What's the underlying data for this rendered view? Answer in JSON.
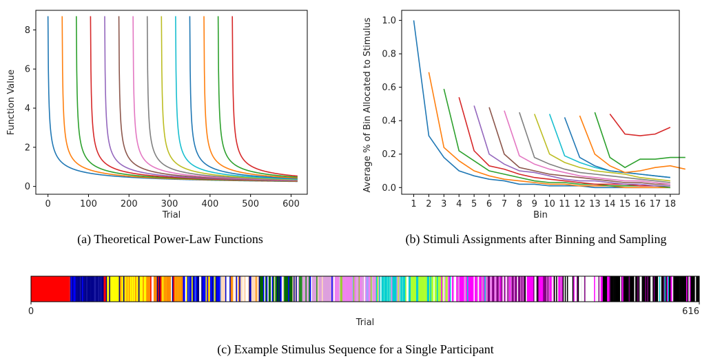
{
  "chart_data": [
    {
      "id": "a",
      "type": "line",
      "caption": "(a) Theoretical Power-Law Functions",
      "xlabel": "Trial",
      "ylabel": "Function Value",
      "xlim": [
        -30,
        640
      ],
      "ylim": [
        -0.4,
        9.0
      ],
      "xticks": [
        0,
        100,
        200,
        300,
        400,
        500,
        600
      ],
      "yticks": [
        0,
        2,
        4,
        6,
        8
      ],
      "offsets": [
        0,
        35,
        70,
        105,
        140,
        175,
        210,
        245,
        280,
        315,
        350,
        385,
        420,
        455
      ],
      "x_end": 616,
      "peak": 8.7,
      "curve": "8.7 / (t + 1)^0.55 for t = trial - offset, drawn from offset to x_end",
      "grid": false
    },
    {
      "id": "b",
      "type": "line",
      "caption": "(b) Stimuli Assignments after Binning and Sampling",
      "xlabel": "Bin",
      "ylabel": "Average % of Bin Allocated to Stimulus",
      "xlim": [
        0.2,
        18.6
      ],
      "ylim": [
        -0.04,
        1.06
      ],
      "xticks": [
        1,
        2,
        3,
        4,
        5,
        6,
        7,
        8,
        9,
        10,
        11,
        12,
        13,
        14,
        15,
        16,
        17,
        18
      ],
      "yticks": [
        0.0,
        0.2,
        0.4,
        0.6,
        0.8,
        1.0
      ],
      "grid": false,
      "series": [
        {
          "start": 1,
          "values": [
            1.0,
            0.31,
            0.18,
            0.1,
            0.07,
            0.05,
            0.04,
            0.02,
            0.02,
            0.01,
            0.01,
            0.01,
            0.0,
            0.0,
            0.0,
            0.0,
            0.0,
            0.0
          ]
        },
        {
          "start": 2,
          "values": [
            0.69,
            0.24,
            0.16,
            0.1,
            0.07,
            0.05,
            0.04,
            0.03,
            0.02,
            0.02,
            0.01,
            0.01,
            0.01,
            0.0,
            0.0,
            0.0,
            0.0
          ]
        },
        {
          "start": 3,
          "values": [
            0.59,
            0.22,
            0.16,
            0.1,
            0.08,
            0.06,
            0.04,
            0.03,
            0.03,
            0.02,
            0.02,
            0.01,
            0.01,
            0.01,
            0.01,
            0.0
          ]
        },
        {
          "start": 4,
          "values": [
            0.54,
            0.22,
            0.13,
            0.11,
            0.08,
            0.06,
            0.05,
            0.04,
            0.03,
            0.02,
            0.02,
            0.02,
            0.01,
            0.01,
            0.01
          ]
        },
        {
          "start": 5,
          "values": [
            0.49,
            0.2,
            0.14,
            0.1,
            0.09,
            0.07,
            0.05,
            0.04,
            0.04,
            0.03,
            0.02,
            0.02,
            0.01,
            0.01
          ]
        },
        {
          "start": 6,
          "values": [
            0.48,
            0.2,
            0.12,
            0.1,
            0.08,
            0.07,
            0.06,
            0.05,
            0.04,
            0.03,
            0.03,
            0.02,
            0.02
          ]
        },
        {
          "start": 7,
          "values": [
            0.46,
            0.19,
            0.14,
            0.11,
            0.09,
            0.07,
            0.06,
            0.05,
            0.04,
            0.04,
            0.03,
            0.02
          ]
        },
        {
          "start": 8,
          "values": [
            0.45,
            0.18,
            0.14,
            0.11,
            0.09,
            0.08,
            0.07,
            0.06,
            0.05,
            0.04,
            0.03
          ]
        },
        {
          "start": 9,
          "values": [
            0.44,
            0.2,
            0.15,
            0.12,
            0.1,
            0.09,
            0.08,
            0.06,
            0.05,
            0.04
          ]
        },
        {
          "start": 10,
          "values": [
            0.44,
            0.19,
            0.15,
            0.12,
            0.1,
            0.09,
            0.08,
            0.07,
            0.06
          ]
        },
        {
          "start": 11,
          "values": [
            0.42,
            0.18,
            0.13,
            0.1,
            0.09,
            0.08,
            0.07,
            0.06
          ]
        },
        {
          "start": 12,
          "values": [
            0.43,
            0.2,
            0.13,
            0.09,
            0.1,
            0.12,
            0.13,
            0.11
          ]
        },
        {
          "start": 13,
          "values": [
            0.45,
            0.18,
            0.12,
            0.17,
            0.17,
            0.18,
            0.18
          ]
        },
        {
          "start": 14,
          "values": [
            0.44,
            0.32,
            0.31,
            0.32,
            0.36
          ]
        }
      ]
    },
    {
      "id": "c",
      "type": "bar",
      "caption": "(c) Example Stimulus Sequence for a Single Participant",
      "xlabel": "Trial",
      "xlim": [
        0,
        616
      ],
      "xticklabels": [
        "0",
        "616"
      ],
      "grid": false,
      "sequence_note": "one colored vertical stripe per trial; colors correspond to stimulus identity",
      "segments": [
        {
          "from": 0,
          "to": 35,
          "color": "#ff0000"
        },
        {
          "from": 35,
          "to": 70,
          "mix": [
            "#00008b",
            "#ff0000",
            "#0000ff",
            "#1a1aa0"
          ]
        },
        {
          "from": 70,
          "to": 105,
          "mix": [
            "#ffff00",
            "#ff0000",
            "#000080",
            "#ffd700",
            "#ff8c00"
          ]
        },
        {
          "from": 105,
          "to": 140,
          "mix": [
            "#ff8c00",
            "#ffff00",
            "#ffa500",
            "#00008b",
            "#ff0000",
            "#ffffff"
          ]
        },
        {
          "from": 140,
          "to": 175,
          "mix": [
            "#0000ff",
            "#000080",
            "#ffff00",
            "#ff8c00",
            "#ffffff",
            "#4169e1"
          ]
        },
        {
          "from": 175,
          "to": 210,
          "mix": [
            "#ffdab9",
            "#0000cd",
            "#ff8c00",
            "#ffffff",
            "#000080"
          ]
        },
        {
          "from": 210,
          "to": 245,
          "mix": [
            "#006400",
            "#228b22",
            "#0000ff",
            "#ffffff",
            "#ffdab9",
            "#00008b"
          ]
        },
        {
          "from": 245,
          "to": 280,
          "mix": [
            "#dda0dd",
            "#a0a0ff",
            "#228b22",
            "#ffdab9",
            "#ffffff",
            "#0000ff"
          ]
        },
        {
          "from": 280,
          "to": 315,
          "mix": [
            "#ee82ee",
            "#9acd32",
            "#dda0dd",
            "#ffffff",
            "#d8bfd8",
            "#a0a0ff"
          ]
        },
        {
          "from": 315,
          "to": 350,
          "mix": [
            "#00ced1",
            "#40e0d0",
            "#ee82ee",
            "#adff2f",
            "#ffffff",
            "#dda0dd"
          ]
        },
        {
          "from": 350,
          "to": 385,
          "mix": [
            "#adff2f",
            "#ff00ff",
            "#00ced1",
            "#ee82ee",
            "#ffffff"
          ]
        },
        {
          "from": 385,
          "to": 420,
          "mix": [
            "#ff00ff",
            "#ee82ee",
            "#00ced1",
            "#ffffff",
            "#da70d6"
          ]
        },
        {
          "from": 420,
          "to": 455,
          "mix": [
            "#800080",
            "#ff00ff",
            "#ffffff",
            "#ee82ee",
            "#da70d6"
          ]
        },
        {
          "from": 455,
          "to": 490,
          "mix": [
            "#ff00ff",
            "#800080",
            "#da70d6",
            "#ffffff",
            "#000000"
          ]
        },
        {
          "from": 490,
          "to": 525,
          "mix": [
            "#ffffff",
            "#000000",
            "#800080",
            "#ff00ff",
            "#f0f0f0"
          ]
        },
        {
          "from": 525,
          "to": 560,
          "mix": [
            "#000000",
            "#ffffff",
            "#ff00ff",
            "#800080"
          ]
        },
        {
          "from": 560,
          "to": 595,
          "mix": [
            "#000000",
            "#ffffff",
            "#ff00ff",
            "#00ced1",
            "#800080"
          ]
        },
        {
          "from": 595,
          "to": 616,
          "mix": [
            "#000000",
            "#ffffff",
            "#ff00ff",
            "#000000",
            "#ffffff"
          ]
        }
      ]
    }
  ],
  "colors": [
    "#1f77b4",
    "#ff7f0e",
    "#2ca02c",
    "#d62728",
    "#9467bd",
    "#8c564b",
    "#e377c2",
    "#7f7f7f",
    "#bcbd22",
    "#17becf",
    "#1f77b4",
    "#ff7f0e",
    "#2ca02c",
    "#d62728"
  ]
}
